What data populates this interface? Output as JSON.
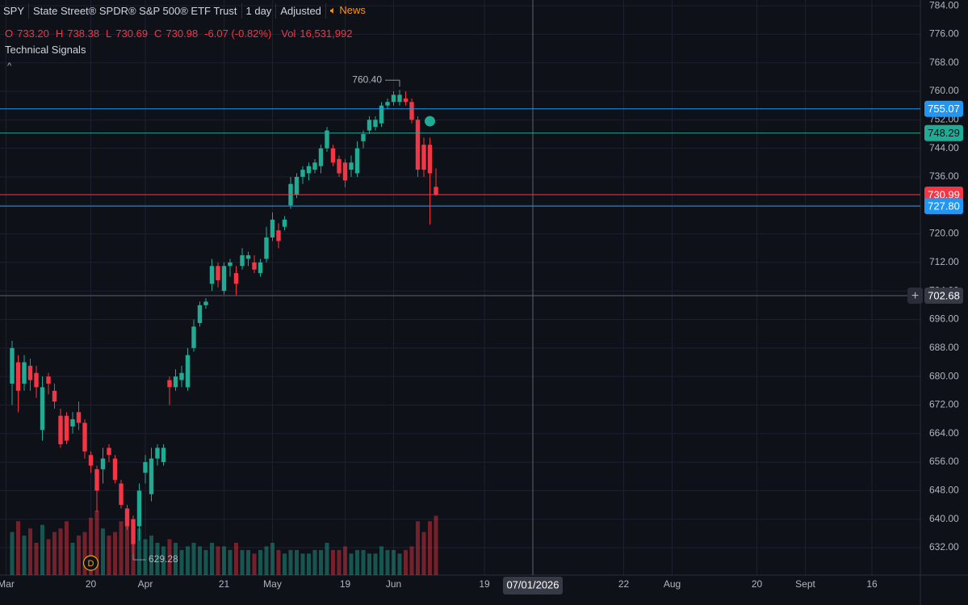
{
  "header": {
    "symbol": "SPY",
    "name": "State Street® SPDR® S&P 500® ETF Trust",
    "interval": "1 day",
    "adjustment": "Adjusted",
    "news": "News",
    "ohlc": [
      {
        "key": "O",
        "value": "733.20"
      },
      {
        "key": "H",
        "value": "738.38"
      },
      {
        "key": "L",
        "value": "730.69"
      },
      {
        "key": "C",
        "value": "730.98"
      }
    ],
    "change": "-6.07 (-0.82%)",
    "volume_key": "Vol",
    "volume": "16,531,992",
    "indicator": "Technical Signals",
    "collapse": "^"
  },
  "chart_data": {
    "type": "candlestick",
    "open": [
      678,
      684,
      678,
      683,
      681,
      665,
      680,
      676,
      669,
      669,
      666,
      670,
      667,
      658,
      654,
      654,
      660,
      657,
      650,
      643,
      640,
      638,
      653,
      647,
      657,
      656,
      679,
      677,
      679,
      677,
      688,
      695,
      700,
      706,
      711,
      704,
      711,
      709,
      711,
      713,
      712,
      709,
      713,
      719,
      721,
      722,
      728,
      731,
      736,
      737,
      738,
      739,
      744,
      744,
      741,
      740,
      738,
      737,
      746,
      749,
      750,
      751,
      756,
      757,
      757,
      758,
      757,
      752,
      745,
      745,
      733.2
    ],
    "high": [
      690,
      686,
      686,
      685,
      683,
      680,
      681,
      678,
      671,
      670,
      670,
      673,
      668,
      659,
      655,
      660,
      661,
      658,
      651,
      644,
      641,
      650,
      658,
      660,
      661,
      661,
      680,
      682,
      683,
      688,
      696,
      701,
      702,
      713,
      712,
      712,
      713,
      711,
      716,
      715,
      714,
      713,
      722,
      726,
      723,
      725,
      736,
      737,
      739,
      740,
      741,
      745,
      750,
      745,
      742,
      741,
      742,
      746,
      749,
      753,
      753,
      757,
      758,
      760,
      760.4,
      760,
      758,
      753,
      747,
      747,
      738.38
    ],
    "low": [
      672,
      670,
      676,
      676,
      674,
      662,
      675,
      671,
      660,
      661,
      664,
      665,
      657,
      653,
      642,
      650,
      656,
      650,
      643,
      637,
      629.28,
      634,
      650,
      645,
      655,
      655,
      672,
      676,
      677,
      676,
      687,
      694,
      699,
      704,
      705,
      703,
      708,
      702.68,
      710,
      711,
      709,
      708,
      712,
      718,
      716,
      721,
      727,
      730,
      734,
      735,
      737,
      737,
      743,
      739,
      736,
      733,
      736,
      736,
      744,
      748,
      749,
      750,
      755,
      756,
      756,
      756,
      751,
      736,
      736,
      722.6,
      730.69
    ],
    "close": [
      688,
      676,
      684,
      679,
      677,
      677,
      678,
      673,
      661,
      662,
      668,
      667,
      659,
      655,
      648,
      657,
      658,
      651,
      644,
      638,
      633,
      648,
      656,
      657,
      660,
      660,
      677,
      680,
      681,
      686,
      694,
      700,
      701,
      711,
      707,
      711,
      712,
      706,
      714,
      714,
      710,
      712,
      719,
      724,
      718,
      724,
      734,
      736,
      738,
      739,
      740,
      744,
      749,
      740,
      737,
      735,
      740,
      744,
      748,
      752,
      752,
      756,
      757,
      759,
      759,
      757,
      752,
      738,
      738,
      737,
      730.98
    ],
    "volume": [
      12000000,
      15000000,
      11000000,
      13000000,
      9000000,
      14000000,
      10000000,
      12000000,
      13000000,
      15000000,
      9000000,
      11000000,
      12000000,
      16000000,
      18000000,
      13000000,
      11000000,
      12000000,
      15000000,
      17000000,
      14000000,
      13000000,
      10000000,
      11000000,
      9000000,
      8000000,
      10000000,
      9000000,
      7000000,
      8000000,
      9000000,
      8000000,
      7000000,
      9000000,
      8000000,
      8000000,
      7000000,
      9000000,
      7000000,
      7000000,
      6000000,
      7000000,
      8000000,
      9000000,
      7000000,
      6000000,
      7000000,
      7000000,
      6000000,
      6000000,
      7000000,
      7000000,
      9000000,
      7000000,
      7000000,
      8000000,
      6000000,
      7000000,
      7000000,
      6000000,
      6000000,
      8000000,
      7000000,
      7000000,
      6000000,
      7000000,
      8000000,
      15000000,
      12000000,
      15000000,
      16531992
    ],
    "up_color": "#22ab94",
    "down_color": "#f23645",
    "xlim": [
      -2,
      150
    ],
    "xticks": [
      {
        "value": -1,
        "label": "Mar"
      },
      {
        "value": 13,
        "label": "20"
      },
      {
        "value": 22,
        "label": "Apr"
      },
      {
        "value": 35,
        "label": "21"
      },
      {
        "value": 43,
        "label": "May"
      },
      {
        "value": 55,
        "label": "19"
      },
      {
        "value": 63,
        "label": "Jun"
      },
      {
        "value": 78,
        "label": "19"
      },
      {
        "value": 101,
        "label": "22"
      },
      {
        "value": 109,
        "label": "Aug"
      },
      {
        "value": 123,
        "label": "20"
      },
      {
        "value": 131,
        "label": "Sept"
      },
      {
        "value": 142,
        "label": "16"
      }
    ],
    "ylim": [
      624.3,
      785.6
    ],
    "yticks": [
      {
        "value": 632,
        "label": "632.00"
      },
      {
        "value": 640,
        "label": "640.00"
      },
      {
        "value": 648,
        "label": "648.00"
      },
      {
        "value": 656,
        "label": "656.00"
      },
      {
        "value": 664,
        "label": "664.00"
      },
      {
        "value": 672,
        "label": "672.00"
      },
      {
        "value": 680,
        "label": "680.00"
      },
      {
        "value": 688,
        "label": "688.00"
      },
      {
        "value": 696,
        "label": "696.00"
      },
      {
        "value": 704,
        "label": "704.00"
      },
      {
        "value": 712,
        "label": "712.00"
      },
      {
        "value": 720,
        "label": "720.00"
      },
      {
        "value": 728,
        "label": "728.00"
      },
      {
        "value": 736,
        "label": "736.00"
      },
      {
        "value": 744,
        "label": "744.00"
      },
      {
        "value": 752,
        "label": "752.00"
      },
      {
        "value": 760,
        "label": "760.00"
      },
      {
        "value": 768,
        "label": "768.00"
      },
      {
        "value": 776,
        "label": "776.00"
      },
      {
        "value": 784,
        "label": "784.00"
      }
    ],
    "grid": true,
    "price_lines": [
      {
        "value": 755.07,
        "label": "755.07",
        "color": "#2196f3"
      },
      {
        "value": 748.29,
        "label": "748.29",
        "color": "#22ab94"
      },
      {
        "value": 730.99,
        "label": "730.99",
        "color": "#f23645"
      },
      {
        "value": 727.8,
        "label": "727.80",
        "color": "#2196f3"
      }
    ],
    "crosshair": {
      "x": {
        "value": 86,
        "label": "07/01/2026"
      },
      "y": {
        "value": 702.68,
        "label": "702.68"
      },
      "button": "+"
    },
    "annotations": [
      {
        "text": "760.40",
        "x": 64,
        "y": 760.4
      },
      {
        "text": "629.28",
        "x": 20,
        "y": 629.28
      }
    ],
    "signals": [
      {
        "x": 69,
        "y": 751.6,
        "color": "#22ab94"
      }
    ],
    "events": [
      {
        "x": 13,
        "label": "D",
        "color": "#f7a600"
      }
    ]
  }
}
